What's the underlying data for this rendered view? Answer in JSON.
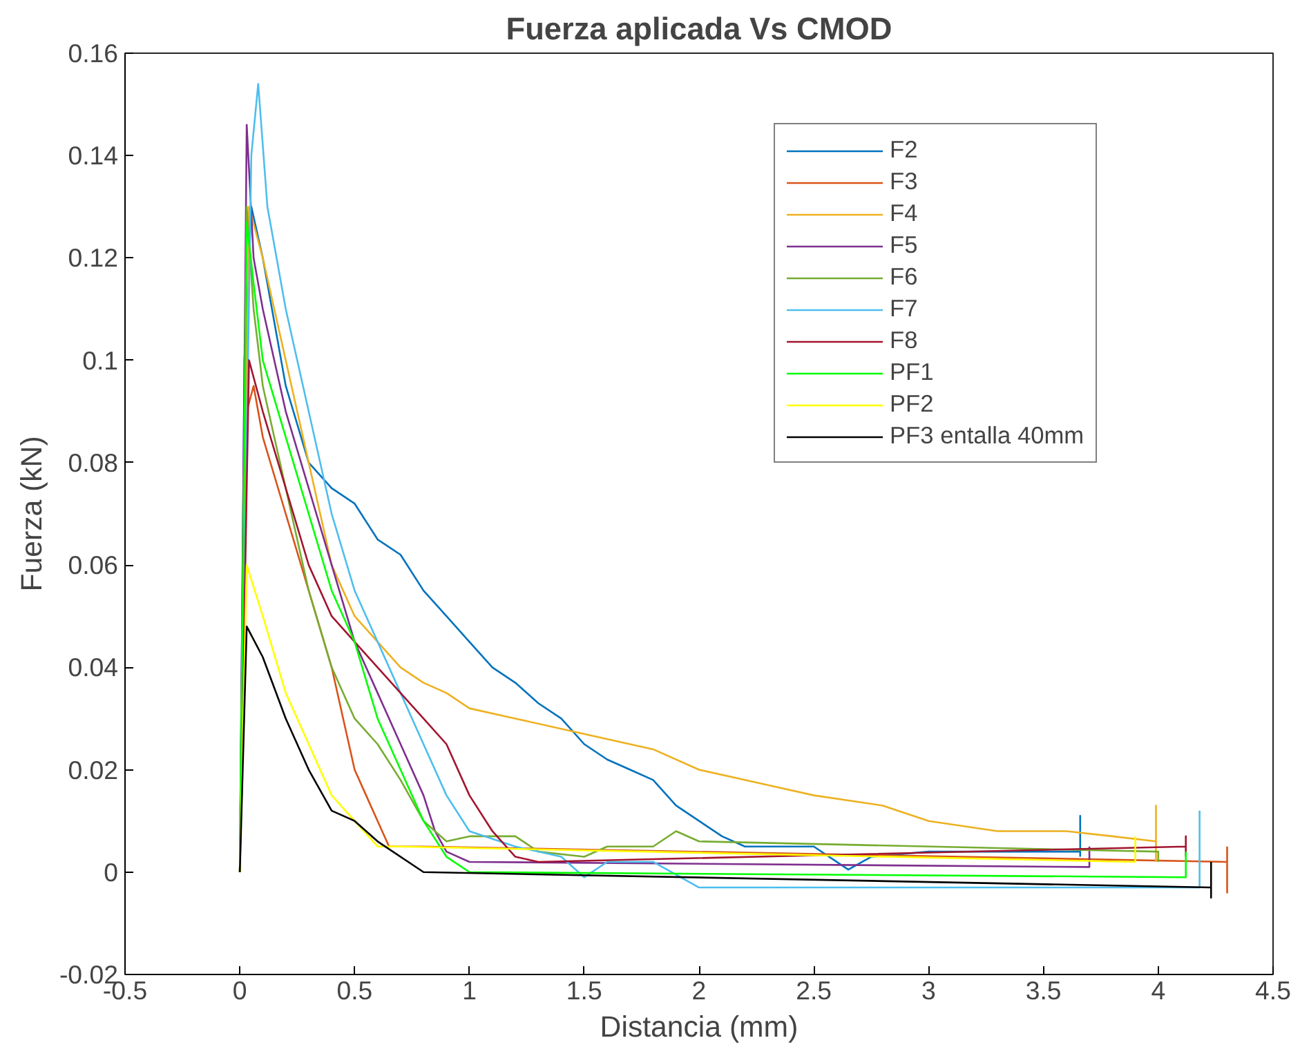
{
  "chart_data": {
    "type": "line",
    "title": "Fuerza aplicada Vs CMOD",
    "xlabel": "Distancia (mm)",
    "ylabel": "Fuerza (kN)",
    "xlim": [
      -0.5,
      4.5
    ],
    "xticks": [
      -0.5,
      0,
      0.5,
      1,
      1.5,
      2,
      2.5,
      3,
      3.5,
      4,
      4.5
    ],
    "ylim": [
      -0.02,
      0.16
    ],
    "yticks": [
      -0.02,
      0,
      0.02,
      0.04,
      0.06,
      0.08,
      0.1,
      0.12,
      0.14,
      0.16
    ],
    "grid": false,
    "legend": "right",
    "marker": "none",
    "line_style": "solid",
    "series": [
      {
        "name": "F2",
        "color": "#0072bd",
        "x": [
          0,
          0.02,
          0.05,
          0.1,
          0.2,
          0.3,
          0.4,
          0.5,
          0.6,
          0.7,
          0.8,
          0.9,
          1.0,
          1.1,
          1.2,
          1.3,
          1.4,
          1.5,
          1.6,
          1.7,
          1.8,
          1.9,
          2.0,
          2.1,
          2.2,
          2.5,
          2.65,
          2.75,
          3.0,
          3.66,
          3.66,
          3.66
        ],
        "values": [
          0,
          0.1,
          0.13,
          0.12,
          0.095,
          0.08,
          0.075,
          0.072,
          0.065,
          0.062,
          0.055,
          0.05,
          0.045,
          0.04,
          0.037,
          0.033,
          0.03,
          0.025,
          0.022,
          0.02,
          0.018,
          0.013,
          0.01,
          0.007,
          0.005,
          0.005,
          0.0005,
          0.003,
          0.004,
          0.004,
          0.011,
          0.003
        ]
      },
      {
        "name": "F3",
        "color": "#d95319",
        "x": [
          0,
          0.03,
          0.06,
          0.1,
          0.2,
          0.3,
          0.4,
          0.45,
          0.5,
          0.55,
          0.6,
          0.65,
          0.8,
          4.3,
          4.3,
          4.3
        ],
        "values": [
          0,
          0.09,
          0.095,
          0.085,
          0.07,
          0.055,
          0.04,
          0.03,
          0.02,
          0.015,
          0.01,
          0.005,
          0.005,
          0.002,
          -0.004,
          0.005
        ]
      },
      {
        "name": "F4",
        "color": "#edb120",
        "x": [
          0,
          0.04,
          0.1,
          0.2,
          0.3,
          0.4,
          0.5,
          0.6,
          0.7,
          0.8,
          0.9,
          1.0,
          1.2,
          1.5,
          1.8,
          2.0,
          2.3,
          2.5,
          2.8,
          3.0,
          3.3,
          3.6,
          3.8,
          3.99,
          3.99,
          3.99
        ],
        "values": [
          0,
          0.13,
          0.12,
          0.1,
          0.08,
          0.06,
          0.05,
          0.045,
          0.04,
          0.037,
          0.035,
          0.032,
          0.03,
          0.027,
          0.024,
          0.02,
          0.017,
          0.015,
          0.013,
          0.01,
          0.008,
          0.008,
          0.007,
          0.006,
          0.013,
          0.002
        ]
      },
      {
        "name": "F5",
        "color": "#7e2f8e",
        "x": [
          0,
          0.03,
          0.06,
          0.1,
          0.2,
          0.3,
          0.4,
          0.5,
          0.6,
          0.7,
          0.8,
          0.85,
          0.9,
          1.0,
          3.7,
          3.7
        ],
        "values": [
          0,
          0.146,
          0.12,
          0.11,
          0.09,
          0.075,
          0.06,
          0.045,
          0.035,
          0.025,
          0.015,
          0.008,
          0.004,
          0.002,
          0.001,
          0.005
        ]
      },
      {
        "name": "F6",
        "color": "#77ac30",
        "x": [
          0,
          0.03,
          0.06,
          0.1,
          0.2,
          0.3,
          0.4,
          0.5,
          0.6,
          0.7,
          0.8,
          0.9,
          1.0,
          1.2,
          1.3,
          1.5,
          1.6,
          1.8,
          1.9,
          2.0,
          4.0,
          4.0
        ],
        "values": [
          0,
          0.13,
          0.11,
          0.095,
          0.075,
          0.055,
          0.04,
          0.03,
          0.025,
          0.018,
          0.01,
          0.006,
          0.007,
          0.007,
          0.004,
          0.003,
          0.005,
          0.005,
          0.008,
          0.006,
          0.004,
          0.002
        ]
      },
      {
        "name": "F7",
        "color": "#4dbeee",
        "x": [
          0,
          0.05,
          0.08,
          0.12,
          0.2,
          0.3,
          0.4,
          0.5,
          0.6,
          0.7,
          0.8,
          0.9,
          1.0,
          1.2,
          1.4,
          1.5,
          1.6,
          1.8,
          2.0,
          4.18,
          4.18
        ],
        "values": [
          0,
          0.14,
          0.154,
          0.13,
          0.11,
          0.09,
          0.07,
          0.055,
          0.045,
          0.035,
          0.025,
          0.015,
          0.008,
          0.005,
          0.003,
          -0.001,
          0.002,
          0.002,
          -0.003,
          -0.003,
          0.012
        ]
      },
      {
        "name": "F8",
        "color": "#a2142f",
        "x": [
          0,
          0.04,
          0.1,
          0.2,
          0.3,
          0.4,
          0.5,
          0.6,
          0.7,
          0.8,
          0.9,
          1.0,
          1.1,
          1.2,
          1.3,
          4.12,
          4.12,
          4.12
        ],
        "values": [
          0,
          0.1,
          0.09,
          0.075,
          0.06,
          0.05,
          0.045,
          0.04,
          0.035,
          0.03,
          0.025,
          0.015,
          0.008,
          0.003,
          0.002,
          0.005,
          0.007,
          0.003
        ]
      },
      {
        "name": "PF1",
        "color": "#00ff00",
        "x": [
          0,
          0.03,
          0.06,
          0.1,
          0.2,
          0.3,
          0.4,
          0.5,
          0.6,
          0.7,
          0.8,
          0.9,
          1.0,
          4.12,
          4.12
        ],
        "values": [
          0,
          0.127,
          0.115,
          0.1,
          0.085,
          0.07,
          0.055,
          0.045,
          0.03,
          0.02,
          0.01,
          0.003,
          0,
          -0.001,
          0.004
        ]
      },
      {
        "name": "PF2",
        "color": "#ffff00",
        "x": [
          0,
          0.03,
          0.1,
          0.2,
          0.3,
          0.4,
          0.5,
          0.6,
          0.7,
          3.9,
          3.9
        ],
        "values": [
          0,
          0.06,
          0.05,
          0.035,
          0.025,
          0.015,
          0.01,
          0.005,
          0.005,
          0.002,
          0.007
        ]
      },
      {
        "name": "PF3 entalla 40mm",
        "color": "#000000",
        "x": [
          0,
          0.03,
          0.1,
          0.2,
          0.3,
          0.4,
          0.5,
          0.6,
          0.8,
          4.23,
          4.23,
          4.23
        ],
        "values": [
          0,
          0.048,
          0.042,
          0.03,
          0.02,
          0.012,
          0.01,
          0.006,
          0,
          -0.003,
          -0.005,
          0.002
        ]
      }
    ]
  }
}
